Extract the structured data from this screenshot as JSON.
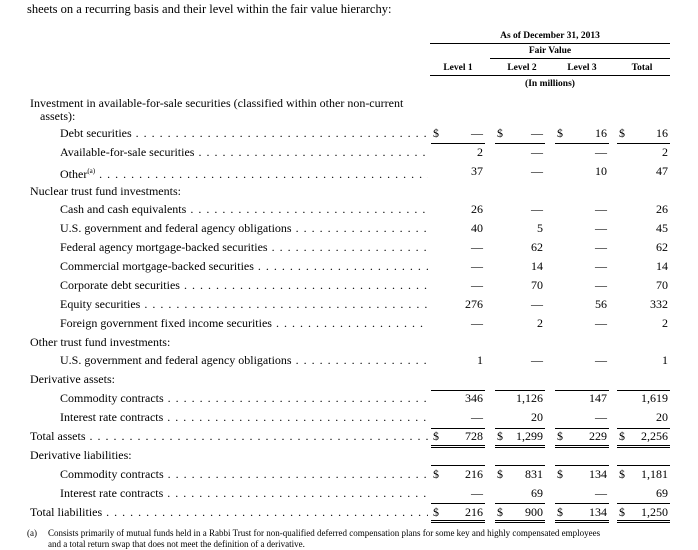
{
  "intro": "sheets on a recurring basis and their level within the fair value hierarchy:",
  "header": {
    "period": "As of December 31, 2013",
    "group": "Fair Value",
    "columns": [
      "Level 1",
      "Level 2",
      "Level 3",
      "Total"
    ],
    "units": "(In millions)"
  },
  "rows": [
    {
      "label": "Investment in available-for-sale securities (classified within other non-current",
      "indent": 0,
      "type": "section"
    },
    {
      "label": "assets):",
      "indent": 1,
      "type": "section-cont"
    },
    {
      "label": "Debt securities",
      "indent": 2,
      "dollar": true,
      "values": [
        "—",
        "—",
        "16",
        "16"
      ]
    },
    {
      "label": "Available-for-sale securities",
      "indent": 2,
      "values": [
        "2",
        "—",
        "—",
        "2"
      ]
    },
    {
      "label": "Other",
      "sup": "(a)",
      "indent": 2,
      "values": [
        "37",
        "—",
        "10",
        "47"
      ]
    },
    {
      "label": "Nuclear trust fund investments:",
      "indent": 0,
      "type": "section"
    },
    {
      "label": "Cash and cash equivalents",
      "indent": 2,
      "values": [
        "26",
        "—",
        "—",
        "26"
      ]
    },
    {
      "label": "U.S. government and federal agency obligations",
      "indent": 2,
      "values": [
        "40",
        "5",
        "—",
        "45"
      ]
    },
    {
      "label": "Federal agency mortgage-backed securities",
      "indent": 2,
      "values": [
        "—",
        "62",
        "—",
        "62"
      ]
    },
    {
      "label": "Commercial mortgage-backed securities",
      "indent": 2,
      "values": [
        "—",
        "14",
        "—",
        "14"
      ]
    },
    {
      "label": "Corporate debt securities",
      "indent": 2,
      "values": [
        "—",
        "70",
        "—",
        "70"
      ]
    },
    {
      "label": "Equity securities",
      "indent": 2,
      "values": [
        "276",
        "—",
        "56",
        "332"
      ]
    },
    {
      "label": "Foreign government fixed income securities",
      "indent": 2,
      "values": [
        "—",
        "2",
        "—",
        "2"
      ]
    },
    {
      "label": "Other trust fund investments:",
      "indent": 0,
      "type": "section"
    },
    {
      "label": "U.S. government and federal agency obligations",
      "indent": 2,
      "values": [
        "1",
        "—",
        "—",
        "1"
      ]
    },
    {
      "label": "Derivative assets:",
      "indent": 0,
      "type": "section"
    },
    {
      "label": "Commodity contracts",
      "indent": 2,
      "values": [
        "346",
        "1,126",
        "147",
        "1,619"
      ]
    },
    {
      "label": "Interest rate contracts",
      "indent": 2,
      "values": [
        "—",
        "20",
        "—",
        "20"
      ]
    },
    {
      "label": "Total assets",
      "indent": 0,
      "dollar": true,
      "total": true,
      "values": [
        "728",
        "1,299",
        "229",
        "2,256"
      ]
    },
    {
      "label": "Derivative liabilities:",
      "indent": 0,
      "type": "section"
    },
    {
      "label": "Commodity contracts",
      "indent": 2,
      "dollar": true,
      "values": [
        "216",
        "831",
        "134",
        "1,181"
      ]
    },
    {
      "label": "Interest rate contracts",
      "indent": 2,
      "values": [
        "—",
        "69",
        "—",
        "69"
      ]
    },
    {
      "label": "Total liabilities",
      "indent": 0,
      "dollar": true,
      "total": true,
      "values": [
        "216",
        "900",
        "134",
        "1,250"
      ]
    }
  ],
  "footnote": {
    "marker": "(a)",
    "line1": "Consists primarily of mutual funds held in a Rabbi Trust for non-qualified deferred compensation plans for some key and highly compensated employees",
    "line2": "and a total return swap that does not meet the definition of a derivative."
  },
  "currency_symbol": "$"
}
